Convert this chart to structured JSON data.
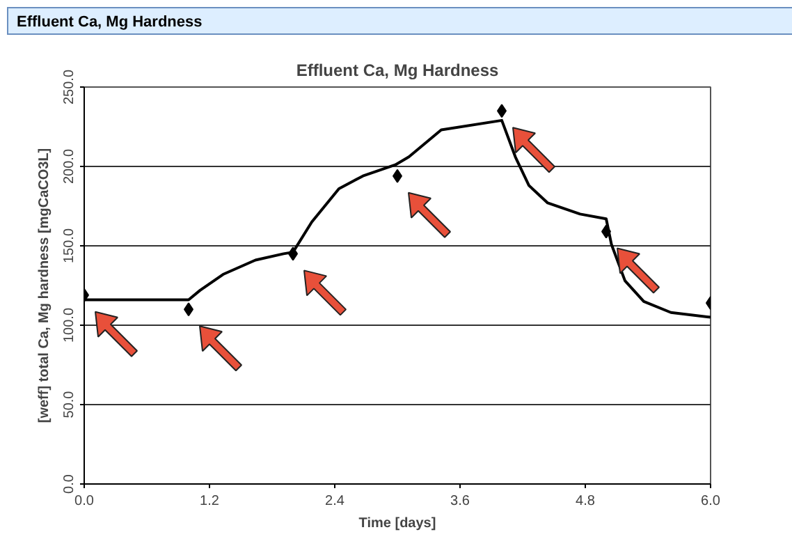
{
  "chart_data": {
    "type": "line",
    "title": "Effluent Ca, Mg Hardness",
    "annotations": [
      "Effluent Ca, Mg Hardness"
    ],
    "xlabel": "Time [days]",
    "ylabel": "[weff] total Ca, Mg hardness [mgCaCO3L]",
    "xlim": [
      0,
      6
    ],
    "ylim": [
      0,
      250
    ],
    "xticks": [
      {
        "value": 0,
        "label": "0.0"
      },
      {
        "value": 1.2,
        "label": "1.2"
      },
      {
        "value": 2.4,
        "label": "2.4"
      },
      {
        "value": 3.6,
        "label": "3.6"
      },
      {
        "value": 4.8,
        "label": "4.8"
      },
      {
        "value": 6,
        "label": "6.0"
      }
    ],
    "yticks": [
      {
        "value": 0,
        "label": "0.0"
      },
      {
        "value": 50,
        "label": "50.0"
      },
      {
        "value": 100,
        "label": "100.0"
      },
      {
        "value": 150,
        "label": "150.0"
      },
      {
        "value": 200,
        "label": "200.0"
      },
      {
        "value": 250,
        "label": "250.0"
      }
    ],
    "grid": "y",
    "series": [
      {
        "color": "#000000",
        "line_style": "solid",
        "x": [
          0,
          1.0,
          1.11,
          1.33,
          1.64,
          1.91,
          2.0,
          2.18,
          2.44,
          2.67,
          2.98,
          3.11,
          3.42,
          4.0,
          4.13,
          4.26,
          4.44,
          4.75,
          5.0,
          5.05,
          5.18,
          5.36,
          5.62,
          6.0
        ],
        "values": [
          116,
          116,
          122,
          132,
          141,
          145,
          146,
          165,
          186,
          194,
          201,
          206,
          223,
          229,
          206,
          188,
          177,
          170,
          167,
          151,
          128,
          115,
          108,
          105
        ]
      },
      {
        "type": "scatter",
        "marker": "diamond",
        "color": "#000000",
        "x": [
          0,
          1.0,
          2.0,
          3.0,
          4.0,
          5.0,
          6.0
        ],
        "values": [
          119,
          110,
          145,
          194,
          235,
          159,
          114
        ]
      }
    ]
  }
}
